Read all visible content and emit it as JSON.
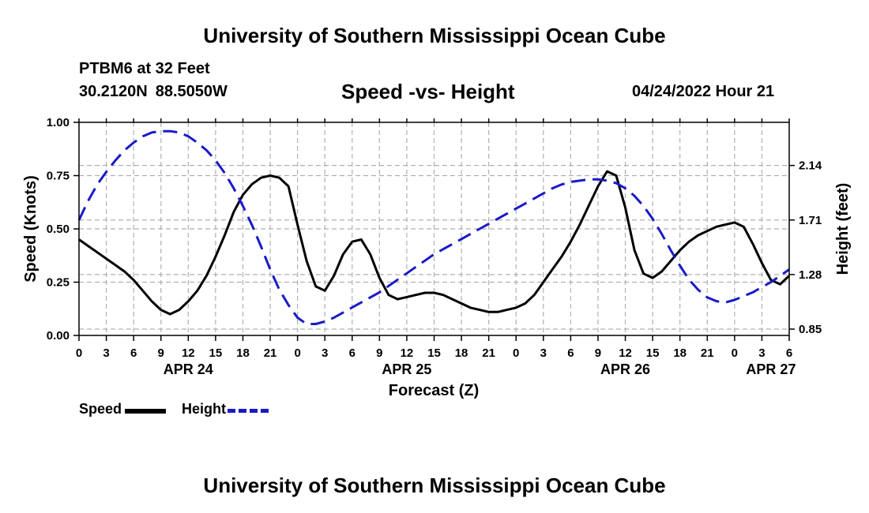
{
  "header": {
    "title": "University of Southern Mississippi Ocean Cube",
    "station": "PTBM6 at 32 Feet",
    "lat": "30.2120N",
    "lon": "88.5050W",
    "subtitle": "Speed -vs- Height",
    "datetime": "04/24/2022 Hour 21"
  },
  "footer": {
    "title": "University of Southern Mississippi Ocean Cube"
  },
  "legend": {
    "speed_label": "Speed",
    "height_label": "Height"
  },
  "chart_data": {
    "type": "line",
    "title": "Speed -vs- Height",
    "xlabel": "Forecast (Z)",
    "ylabel_left": "Speed (Knots)",
    "ylabel_right": "Height (feet)",
    "x_range_hours": [
      0,
      78
    ],
    "x_tick_labels": [
      "0",
      "3",
      "6",
      "9",
      "12",
      "15",
      "18",
      "21",
      "0",
      "3",
      "6",
      "9",
      "12",
      "15",
      "18",
      "21",
      "0",
      "3",
      "6",
      "9",
      "12",
      "15",
      "18",
      "21",
      "0",
      "3",
      "6"
    ],
    "date_labels": [
      {
        "hour": 12,
        "label": "APR 24"
      },
      {
        "hour": 36,
        "label": "APR 25"
      },
      {
        "hour": 60,
        "label": "APR 26"
      },
      {
        "hour": 76,
        "label": "APR 27"
      }
    ],
    "ylim_left": [
      0,
      1.0
    ],
    "left_ticks": [
      "0.00",
      "0.25",
      "0.50",
      "0.75",
      "1.00"
    ],
    "ylim_right": [
      0.8,
      2.48
    ],
    "right_ticks": [
      "0.85",
      "1.28",
      "1.71",
      "2.14"
    ],
    "grid": true,
    "series": [
      {
        "name": "Speed",
        "axis": "left",
        "color": "#000000",
        "style": "solid",
        "x": [
          0,
          1,
          2,
          3,
          4,
          5,
          6,
          7,
          8,
          9,
          10,
          11,
          12,
          13,
          14,
          15,
          16,
          17,
          18,
          19,
          20,
          21,
          22,
          23,
          24,
          25,
          26,
          27,
          28,
          29,
          30,
          31,
          32,
          33,
          34,
          35,
          36,
          37,
          38,
          39,
          40,
          41,
          42,
          43,
          44,
          45,
          46,
          47,
          48,
          49,
          50,
          51,
          52,
          53,
          54,
          55,
          56,
          57,
          58,
          59,
          60,
          61,
          62,
          63,
          64,
          65,
          66,
          67,
          68,
          69,
          70,
          71,
          72,
          73,
          74,
          75,
          76,
          77,
          78
        ],
        "values": [
          0.45,
          0.42,
          0.39,
          0.36,
          0.33,
          0.3,
          0.26,
          0.21,
          0.16,
          0.12,
          0.1,
          0.12,
          0.16,
          0.21,
          0.28,
          0.37,
          0.47,
          0.58,
          0.66,
          0.71,
          0.74,
          0.75,
          0.74,
          0.7,
          0.52,
          0.35,
          0.23,
          0.21,
          0.28,
          0.38,
          0.44,
          0.45,
          0.38,
          0.27,
          0.19,
          0.17,
          0.18,
          0.19,
          0.2,
          0.2,
          0.19,
          0.17,
          0.15,
          0.13,
          0.12,
          0.11,
          0.11,
          0.12,
          0.13,
          0.15,
          0.19,
          0.25,
          0.31,
          0.37,
          0.44,
          0.52,
          0.61,
          0.7,
          0.77,
          0.75,
          0.6,
          0.4,
          0.29,
          0.27,
          0.3,
          0.35,
          0.4,
          0.44,
          0.47,
          0.49,
          0.51,
          0.52,
          0.53,
          0.51,
          0.43,
          0.34,
          0.26,
          0.24,
          0.28
        ]
      },
      {
        "name": "Height",
        "axis": "right",
        "color": "#1a1ac8",
        "style": "dashed",
        "x": [
          0,
          1,
          2,
          3,
          4,
          5,
          6,
          7,
          8,
          9,
          10,
          11,
          12,
          13,
          14,
          15,
          16,
          17,
          18,
          19,
          20,
          21,
          22,
          23,
          24,
          25,
          26,
          27,
          28,
          29,
          30,
          31,
          32,
          33,
          34,
          35,
          36,
          37,
          38,
          39,
          40,
          41,
          42,
          43,
          44,
          45,
          46,
          47,
          48,
          49,
          50,
          51,
          52,
          53,
          54,
          55,
          56,
          57,
          58,
          59,
          60,
          61,
          62,
          63,
          64,
          65,
          66,
          67,
          68,
          69,
          70,
          71,
          72,
          73,
          74,
          75,
          76,
          77,
          78
        ],
        "values": [
          1.71,
          1.86,
          1.99,
          2.09,
          2.18,
          2.26,
          2.32,
          2.37,
          2.4,
          2.41,
          2.41,
          2.4,
          2.37,
          2.32,
          2.26,
          2.18,
          2.08,
          1.96,
          1.82,
          1.67,
          1.5,
          1.32,
          1.16,
          1.04,
          0.94,
          0.89,
          0.89,
          0.91,
          0.94,
          0.98,
          1.02,
          1.06,
          1.1,
          1.14,
          1.19,
          1.24,
          1.29,
          1.34,
          1.39,
          1.44,
          1.48,
          1.52,
          1.56,
          1.6,
          1.64,
          1.68,
          1.72,
          1.76,
          1.8,
          1.84,
          1.88,
          1.92,
          1.96,
          1.99,
          2.01,
          2.02,
          2.03,
          2.03,
          2.02,
          2.0,
          1.96,
          1.9,
          1.82,
          1.72,
          1.6,
          1.47,
          1.35,
          1.24,
          1.16,
          1.1,
          1.07,
          1.06,
          1.08,
          1.11,
          1.14,
          1.18,
          1.22,
          1.27,
          1.32
        ]
      }
    ]
  }
}
